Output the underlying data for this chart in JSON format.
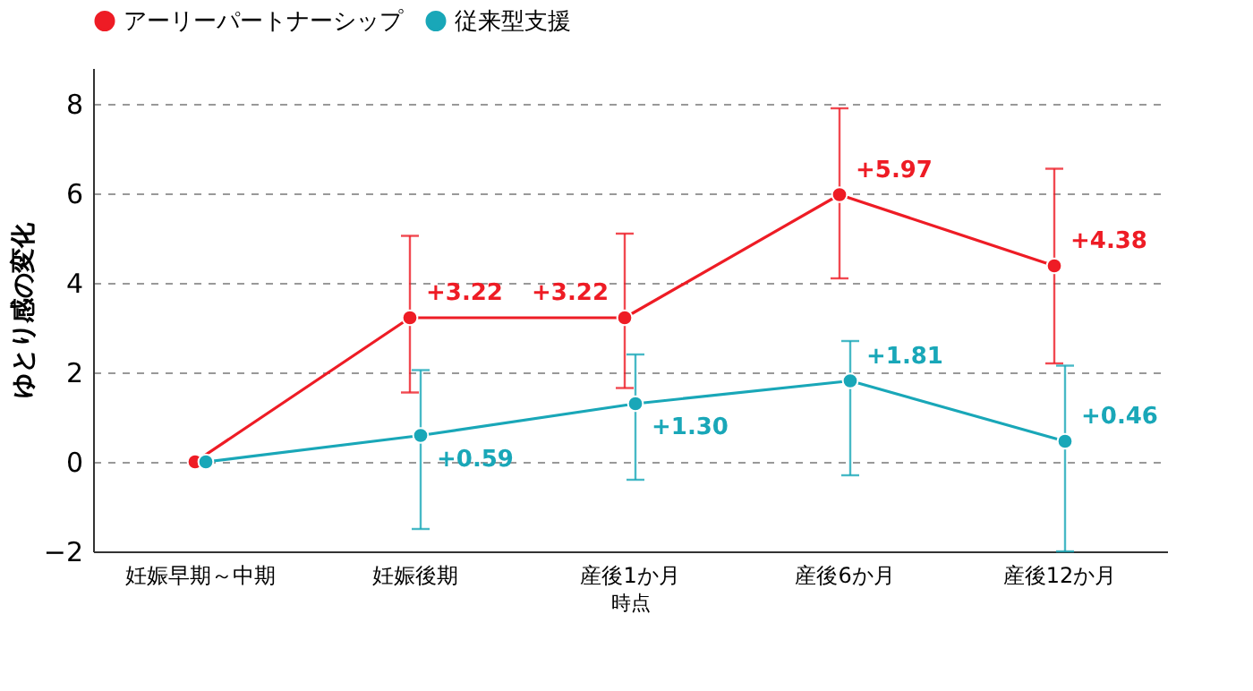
{
  "chart_data": {
    "type": "line",
    "xlabel": "時点",
    "ylabel": "ゆとり感の変化",
    "categories": [
      "妊娠早期～中期",
      "妊娠後期",
      "産後1か月",
      "産後6か月",
      "産後12か月"
    ],
    "series": [
      {
        "name": "アーリーパートナーシップ",
        "color": "#ee1c25",
        "values": [
          0,
          3.22,
          3.22,
          5.97,
          4.38
        ],
        "errors": [
          null,
          [
            1.55,
            5.05
          ],
          [
            1.65,
            5.1
          ],
          [
            4.1,
            7.9
          ],
          [
            2.2,
            6.55
          ]
        ],
        "value_labels": [
          null,
          "+3.22",
          "+3.22",
          "+5.97",
          "+4.38"
        ]
      },
      {
        "name": "従来型支援",
        "color": "#19a7b8",
        "values": [
          0,
          0.59,
          1.3,
          1.81,
          0.46
        ],
        "errors": [
          null,
          [
            -1.5,
            2.05
          ],
          [
            -0.4,
            2.4
          ],
          [
            -0.3,
            2.7
          ],
          [
            -2.0,
            2.15
          ]
        ],
        "value_labels": [
          null,
          "+0.59",
          "+1.30",
          "+1.81",
          "+0.46"
        ]
      }
    ],
    "ylim": [
      -2,
      8.8
    ],
    "yticks": [
      -2,
      0,
      2,
      4,
      6,
      8
    ],
    "grid": "y",
    "legend": "top",
    "marker": "circle",
    "line_style": "solid"
  }
}
